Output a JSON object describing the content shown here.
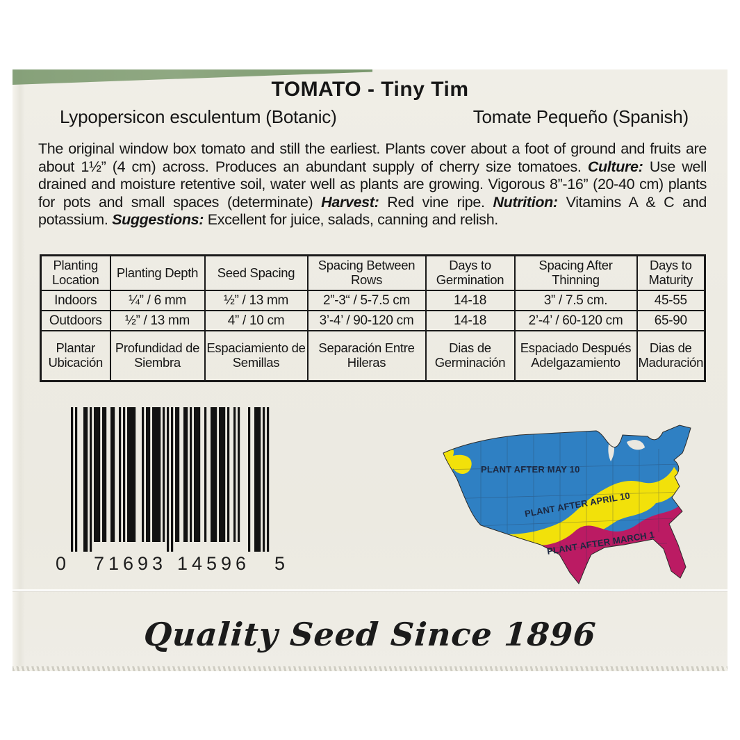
{
  "packet": {
    "title": "TOMATO - Tiny Tim",
    "botanic_name": "Lypopersicon esculentum (Botanic)",
    "spanish_name": "Tomate Pequeño (Spanish)",
    "description_segments": [
      {
        "text": "The original window box tomato and still the earliest. Plants cover about a foot of ground and fruits are about 1½” (4 cm) across. Produces an abundant supply of cherry size tomatoes. ",
        "bold_italic": false
      },
      {
        "text": "Culture:",
        "bold_italic": true
      },
      {
        "text": " Use well drained and moisture retentive soil, water well as plants are growing. Vigorous 8”-16” (20-40 cm) plants for pots and small spaces (determinate) ",
        "bold_italic": false
      },
      {
        "text": "Harvest:",
        "bold_italic": true
      },
      {
        "text": " Red vine ripe. ",
        "bold_italic": false
      },
      {
        "text": "Nutrition:",
        "bold_italic": true
      },
      {
        "text": " Vitamins A & C and potassium. ",
        "bold_italic": false
      },
      {
        "text": "Suggestions:",
        "bold_italic": true
      },
      {
        "text": " Excellent for juice, salads, canning and relish.",
        "bold_italic": false
      }
    ]
  },
  "table": {
    "header": [
      "Planting Location",
      "Planting Depth",
      "Seed Spacing",
      "Spacing Between Rows",
      "Days to Germination",
      "Spacing After Thinning",
      "Days to Maturity"
    ],
    "rows": [
      [
        "Indoors",
        "¼” / 6 mm",
        "½” / 13 mm",
        "2”-3“ / 5-7.5 cm",
        "14-18",
        "3” / 7.5 cm.",
        "45-55"
      ],
      [
        "Outdoors",
        "½” / 13 mm",
        "4” / 10 cm",
        "3’-4’ / 90-120 cm",
        "14-18",
        "2’-4’ / 60-120 cm",
        "65-90"
      ]
    ],
    "spanish_header": [
      "Plantar Ubicación",
      "Profundidad de Siembra",
      "Espaciamiento de Semillas",
      "Separación Entre Hileras",
      "Dias de Germinación",
      "Espaciado Después Adelgazamiento",
      "Dias de Maduración"
    ]
  },
  "barcode": {
    "digits": "071693145965",
    "display": [
      "0",
      "71693",
      "14596",
      "5"
    ]
  },
  "map": {
    "labels": [
      "PLANT AFTER MAY 10",
      "PLANT AFTER APRIL 10",
      "PLANT AFTER MARCH 1"
    ],
    "colors": {
      "north_zone": "#2f80c3",
      "middle_zone": "#f2e10a",
      "south_zone": "#bb1b63",
      "lake": "#eae8e0",
      "state_line": "#2a3850"
    }
  },
  "footer": {
    "tagline": "Quality Seed Since 1896"
  }
}
